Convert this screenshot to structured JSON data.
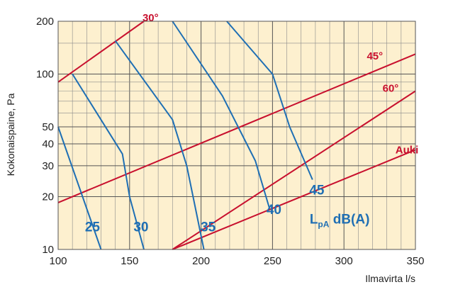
{
  "chart_data": {
    "type": "line",
    "xlabel": "Ilmavirta l/s",
    "ylabel": "Kokonaispaine, Pa",
    "xlim": [
      100,
      350
    ],
    "ylim": [
      10,
      200
    ],
    "yscale": "log",
    "x_ticks": [
      100,
      150,
      200,
      250,
      300,
      350
    ],
    "y_ticks": [
      10,
      20,
      30,
      40,
      50,
      100,
      200
    ],
    "grid": true,
    "background_color": "#fdf0cf",
    "damper_color": "#c8102e",
    "sound_color": "#1f6fb4",
    "damper_series": [
      {
        "name": "30°",
        "points": [
          [
            100,
            90
          ],
          [
            160,
            200
          ]
        ],
        "label_at": [
          159,
          210
        ]
      },
      {
        "name": "45°",
        "points": [
          [
            100,
            18.5
          ],
          [
            350,
            130
          ]
        ],
        "label_at": [
          316,
          127
        ]
      },
      {
        "name": "60°",
        "points": [
          [
            180,
            10
          ],
          [
            350,
            80
          ]
        ],
        "label_at": [
          327,
          83
        ]
      },
      {
        "name": "Auki",
        "points": [
          [
            180,
            10
          ],
          [
            350,
            37
          ]
        ],
        "label_at": [
          336,
          37
        ]
      }
    ],
    "sound_series": [
      {
        "name": "25",
        "points": [
          [
            100,
            50
          ],
          [
            130,
            10
          ]
        ],
        "label_at": [
          124,
          13.5
        ]
      },
      {
        "name": "30",
        "points": [
          [
            110,
            100
          ],
          [
            145,
            35
          ],
          [
            150,
            20
          ],
          [
            160,
            10
          ]
        ],
        "label_at": [
          158,
          13.5
        ]
      },
      {
        "name": "35",
        "points": [
          [
            140,
            155
          ],
          [
            180,
            55
          ],
          [
            190,
            30
          ],
          [
            202,
            10
          ]
        ],
        "label_at": [
          205,
          13.5
        ]
      },
      {
        "name": "40",
        "points": [
          [
            180,
            200
          ],
          [
            215,
            75
          ],
          [
            238,
            32
          ],
          [
            248,
            17
          ]
        ],
        "label_at": [
          251,
          17
        ]
      },
      {
        "name": "45",
        "points": [
          [
            218,
            200
          ],
          [
            250,
            100
          ],
          [
            262,
            50
          ],
          [
            278,
            25
          ]
        ],
        "label_at": [
          281,
          22
        ]
      }
    ],
    "unit_label": {
      "main": "L",
      "subscript": "pA",
      "suffix": " dB(A)",
      "label_at": [
        276,
        15
      ]
    }
  }
}
